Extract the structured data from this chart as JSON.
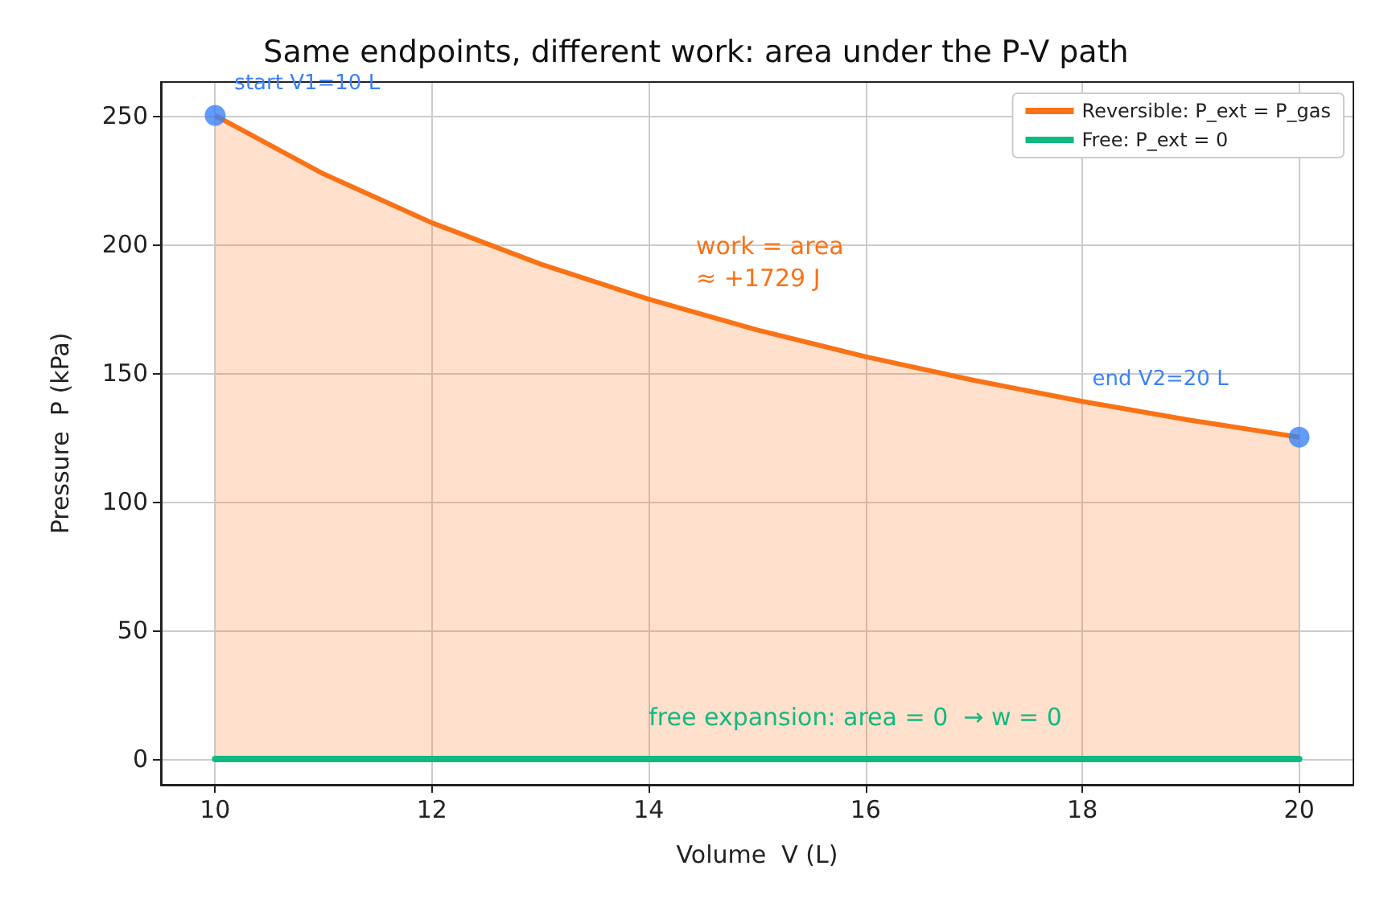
{
  "chart_data": {
    "type": "area",
    "title": "Same endpoints, different work: area under the P-V path",
    "xlabel": "Volume  V (L)",
    "ylabel": "Pressure  P (kPa)",
    "xlim": [
      9.5,
      20.5
    ],
    "xticks": [
      10,
      12,
      14,
      16,
      18,
      20
    ],
    "ylim": [
      -10,
      263
    ],
    "yticks": [
      0,
      50,
      100,
      150,
      200,
      250
    ],
    "grid": true,
    "legend": "top right",
    "line_style": "solid",
    "series": [
      {
        "name": "Reversible: P_ext = P_gas",
        "color": "#f97316",
        "marker": "none",
        "x": [
          10,
          11,
          12,
          13,
          14,
          15,
          16,
          17,
          18,
          19,
          20
        ],
        "values": [
          250,
          227.3,
          208.3,
          192.3,
          178.6,
          166.7,
          156.3,
          147.1,
          138.9,
          131.6,
          125
        ]
      },
      {
        "name": "Free: P_ext = 0",
        "type": "line",
        "color": "#10b981",
        "marker": "none",
        "x": [
          10,
          20
        ],
        "values": [
          0,
          0
        ]
      },
      {
        "type": "scatter",
        "color": "#3b82f6",
        "marker": "circle",
        "x": [
          10,
          20
        ],
        "values": [
          250,
          125
        ]
      }
    ],
    "annotations": [
      {
        "text": "start V1=10 L",
        "x": 10,
        "y": 250
      },
      "end V2=20 L",
      "work = area\n≈ +1729 J",
      {
        "text": "free expansion: area = 0  → w = 0",
        "x": 14,
        "y": 0
      }
    ]
  }
}
